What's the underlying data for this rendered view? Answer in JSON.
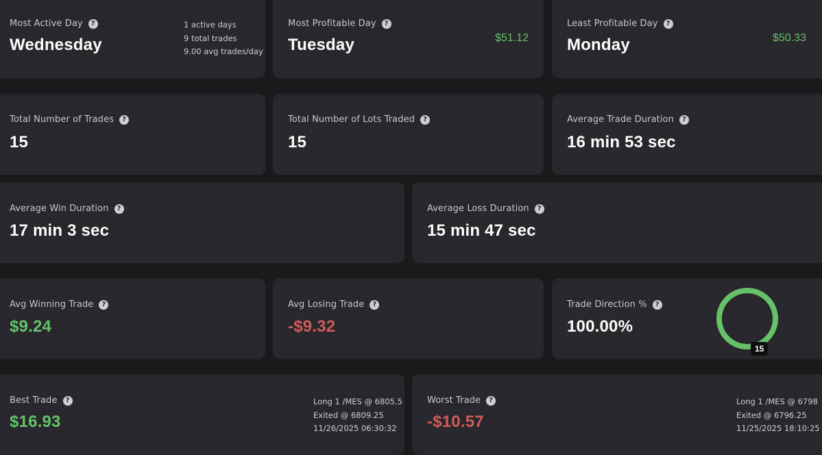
{
  "most_active": {
    "label": "Most Active Day",
    "value": "Wednesday",
    "details": [
      "1 active days",
      "9 total trades",
      "9.00 avg trades/day"
    ]
  },
  "most_profitable": {
    "label": "Most Profitable Day",
    "value": "Tuesday",
    "amount": "$51.12"
  },
  "least_profitable": {
    "label": "Least Profitable Day",
    "value": "Monday",
    "amount": "$50.33"
  },
  "total_trades": {
    "label": "Total Number of Trades",
    "value": "15"
  },
  "total_lots": {
    "label": "Total Number of Lots Traded",
    "value": "15"
  },
  "avg_duration": {
    "label": "Average Trade Duration",
    "value": "16 min 53 sec"
  },
  "avg_win_duration": {
    "label": "Average Win Duration",
    "value": "17 min 3 sec"
  },
  "avg_loss_duration": {
    "label": "Average Loss Duration",
    "value": "15 min 47 sec"
  },
  "avg_winning": {
    "label": "Avg Winning Trade",
    "value": "$9.24"
  },
  "avg_losing": {
    "label": "Avg Losing Trade",
    "value": "-$9.32"
  },
  "trade_direction": {
    "label": "Trade Direction %",
    "value": "100.00%",
    "ring_count": "15",
    "ring_fraction": 1.0,
    "ring_color": "#66c26a"
  },
  "best_trade": {
    "label": "Best Trade",
    "value": "$16.93",
    "details": [
      "Long 1 /MES @ 6805.5",
      "Exited @ 6809.25",
      "11/26/2025 06:30:32"
    ]
  },
  "worst_trade": {
    "label": "Worst Trade",
    "value": "-$10.57",
    "details": [
      "Long 1 /MES @ 6798",
      "Exited @ 6796.25",
      "11/25/2025 18:10:25"
    ]
  },
  "help_glyph": "?",
  "colors": {
    "positive": "#66c26a",
    "negative": "#cf5b5b",
    "card": "#28282c",
    "background": "#1a1a1d"
  }
}
